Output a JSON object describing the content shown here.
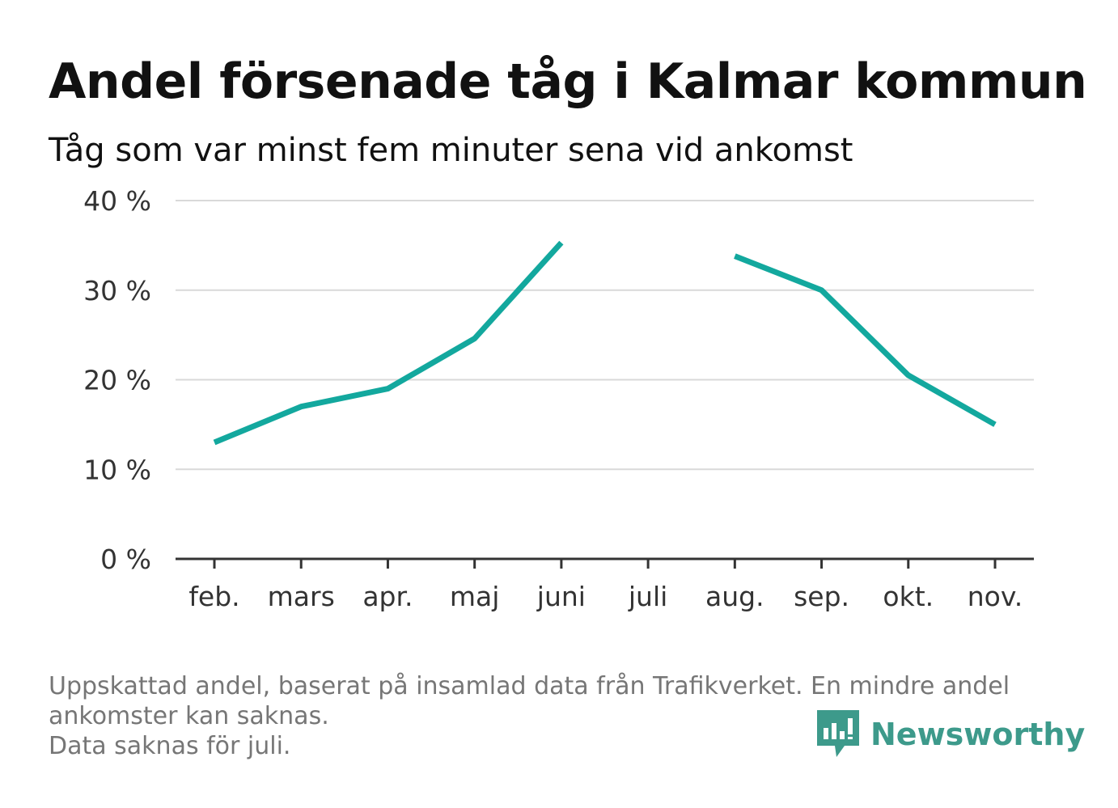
{
  "header": {
    "title": "Andel försenade tåg i Kalmar kommun",
    "subtitle": "Tåg som var minst fem minuter sena vid ankomst"
  },
  "chart_data": {
    "type": "line",
    "categories": [
      "feb.",
      "mars",
      "apr.",
      "maj",
      "juni",
      "juli",
      "aug.",
      "sep.",
      "okt.",
      "nov."
    ],
    "series": [
      {
        "values": [
          13,
          17,
          19,
          24.6,
          35.3,
          null,
          33.8,
          30,
          20.5,
          15
        ]
      }
    ],
    "ylim": [
      0,
      40
    ],
    "yticks": [
      0,
      10,
      20,
      30,
      40
    ],
    "ytick_labels": [
      "0 %",
      "10 %",
      "20 %",
      "30 %",
      "40 %"
    ],
    "grid": true,
    "color": "#13a89e"
  },
  "footer": {
    "note_lines": [
      "Uppskattad andel, baserat på insamlad data från Trafikverket. En mindre andel",
      "ankomster kan saknas.",
      "Data saknas för juli."
    ],
    "brand": "Newsworthy",
    "brand_color": "#3d9a8b"
  }
}
